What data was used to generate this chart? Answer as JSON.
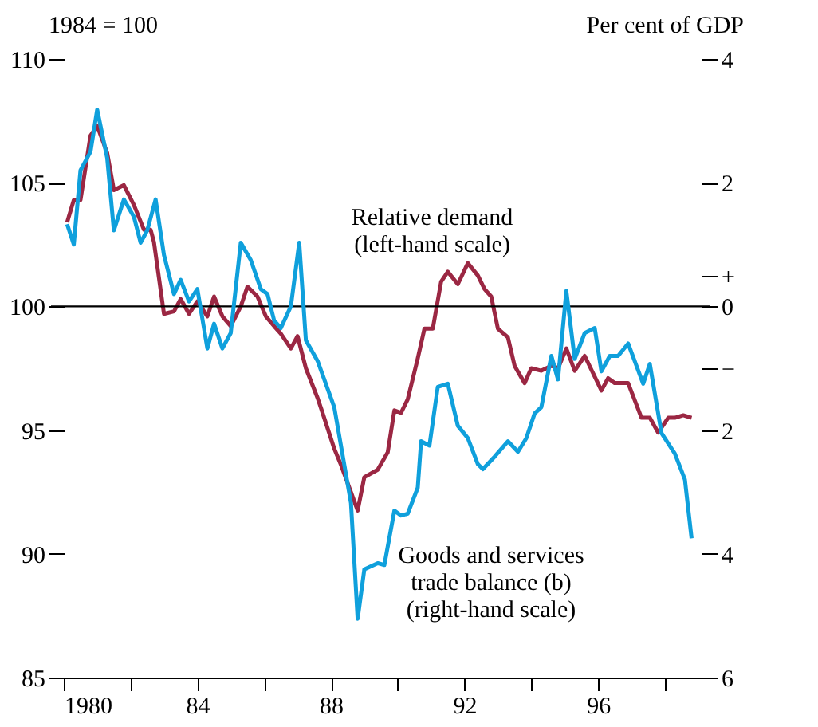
{
  "chart_data": {
    "type": "line",
    "ylabel": "1984 = 100",
    "y2label": "Per cent of GDP",
    "xlim": [
      1980,
      1999.1
    ],
    "xticks": [
      {
        "value": 1980,
        "label": "1980"
      },
      {
        "value": 1982,
        "label": null
      },
      {
        "value": 1984,
        "label": "84"
      },
      {
        "value": 1986,
        "label": null
      },
      {
        "value": 1988,
        "label": "88"
      },
      {
        "value": 1990,
        "label": null
      },
      {
        "value": 1992,
        "label": "92"
      },
      {
        "value": 1994,
        "label": null
      },
      {
        "value": 1996,
        "label": "96"
      },
      {
        "value": 1998,
        "label": null
      }
    ],
    "ylim": [
      85,
      110
    ],
    "yticks": [
      85,
      90,
      95,
      100,
      105,
      110
    ],
    "y2lim": [
      -6,
      4
    ],
    "y2ticks": [
      {
        "value": 4,
        "label": "4"
      },
      {
        "value": 2,
        "label": "2"
      },
      {
        "value": 0.5,
        "label": "+"
      },
      {
        "value": 0,
        "label": "0"
      },
      {
        "value": -1,
        "label": "−"
      },
      {
        "value": -2,
        "label": "2"
      },
      {
        "value": -4,
        "label": "4"
      },
      {
        "value": -6,
        "label": "6"
      }
    ],
    "ref_lines": [
      {
        "axis": "y",
        "value": 100,
        "color": "#000000"
      }
    ],
    "series": [
      {
        "name": "Relative demand\n(left-hand scale)",
        "color": "#9b2743",
        "x": [
          1980.1,
          1980.3,
          1980.5,
          1980.8,
          1981.0,
          1981.3,
          1981.5,
          1981.8,
          1982.1,
          1982.4,
          1982.6,
          1982.7,
          1983.0,
          1983.3,
          1983.5,
          1983.75,
          1984.0,
          1984.3,
          1984.5,
          1984.75,
          1985.0,
          1985.3,
          1985.5,
          1985.8,
          1986.05,
          1986.3,
          1986.5,
          1986.8,
          1987.0,
          1987.25,
          1987.6,
          1987.7,
          1988.1,
          1988.3,
          1988.8,
          1989.0,
          1989.4,
          1989.7,
          1989.9,
          1990.1,
          1990.3,
          1990.6,
          1990.8,
          1991.05,
          1991.3,
          1991.5,
          1991.8,
          1992.1,
          1992.4,
          1992.6,
          1992.8,
          1993.0,
          1993.3,
          1993.5,
          1993.8,
          1994.0,
          1994.3,
          1994.6,
          1994.8,
          1995.05,
          1995.3,
          1995.6,
          1996.1,
          1996.3,
          1996.5,
          1996.9,
          1997.3,
          1997.55,
          1997.8,
          1998.1,
          1998.3,
          1998.55,
          1998.8
        ],
        "values": [
          103.4,
          104.3,
          104.3,
          106.9,
          107.3,
          106.2,
          104.7,
          104.9,
          104.1,
          103.1,
          103.1,
          102.6,
          99.7,
          99.8,
          100.3,
          99.7,
          100.2,
          99.6,
          100.4,
          99.6,
          99.2,
          100.0,
          100.8,
          100.4,
          99.6,
          99.2,
          98.9,
          98.3,
          98.8,
          97.5,
          96.3,
          95.9,
          94.25,
          93.6,
          91.75,
          93.1,
          93.4,
          94.1,
          95.8,
          95.7,
          96.25,
          97.9,
          99.1,
          99.1,
          101.0,
          101.4,
          100.9,
          101.75,
          101.25,
          100.7,
          100.4,
          99.1,
          98.75,
          97.6,
          96.9,
          97.5,
          97.4,
          97.6,
          97.5,
          98.3,
          97.4,
          98.0,
          96.6,
          97.1,
          96.9,
          96.9,
          95.5,
          95.5,
          94.9,
          95.5,
          95.5,
          95.6,
          95.5
        ]
      },
      {
        "name": "Goods and services\ntrade balance (b)\n(right-hand scale)",
        "color": "#0fa0dc",
        "axis": "y2",
        "x": [
          1980.1,
          1980.3,
          1980.5,
          1980.8,
          1981.0,
          1981.3,
          1981.5,
          1981.8,
          1982.1,
          1982.3,
          1982.5,
          1982.75,
          1983.0,
          1983.3,
          1983.5,
          1983.75,
          1984.0,
          1984.3,
          1984.5,
          1984.75,
          1985.0,
          1985.3,
          1985.6,
          1985.9,
          1986.1,
          1986.3,
          1986.5,
          1986.8,
          1987.05,
          1987.25,
          1987.6,
          1988.1,
          1988.6,
          1988.8,
          1989.0,
          1989.4,
          1989.6,
          1989.9,
          1990.1,
          1990.3,
          1990.6,
          1990.7,
          1990.95,
          1991.2,
          1991.5,
          1991.8,
          1992.1,
          1992.4,
          1992.55,
          1992.9,
          1993.3,
          1993.6,
          1993.85,
          1994.1,
          1994.3,
          1994.6,
          1994.8,
          1995.05,
          1995.3,
          1995.6,
          1995.9,
          1996.1,
          1996.35,
          1996.6,
          1996.9,
          1997.35,
          1997.55,
          1997.9,
          1998.3,
          1998.6,
          1998.8
        ],
        "values": [
          1.33,
          1.0,
          2.2,
          2.5,
          3.18,
          2.4,
          1.23,
          1.73,
          1.45,
          1.03,
          1.23,
          1.73,
          0.83,
          0.2,
          0.43,
          0.08,
          0.28,
          -0.68,
          -0.28,
          -0.68,
          -0.43,
          1.03,
          0.75,
          0.28,
          0.2,
          -0.23,
          -0.35,
          0.0,
          1.03,
          -0.55,
          -0.88,
          -1.63,
          -3.18,
          -5.05,
          -4.25,
          -4.15,
          -4.18,
          -3.3,
          -3.38,
          -3.35,
          -2.93,
          -2.18,
          -2.25,
          -1.3,
          -1.25,
          -1.93,
          -2.13,
          -2.55,
          -2.63,
          -2.43,
          -2.18,
          -2.35,
          -2.13,
          -1.73,
          -1.63,
          -0.8,
          -1.18,
          0.25,
          -0.85,
          -0.43,
          -0.35,
          -1.05,
          -0.8,
          -0.8,
          -0.6,
          -1.25,
          -0.93,
          -2.05,
          -2.38,
          -2.8,
          -3.75
        ]
      }
    ]
  }
}
